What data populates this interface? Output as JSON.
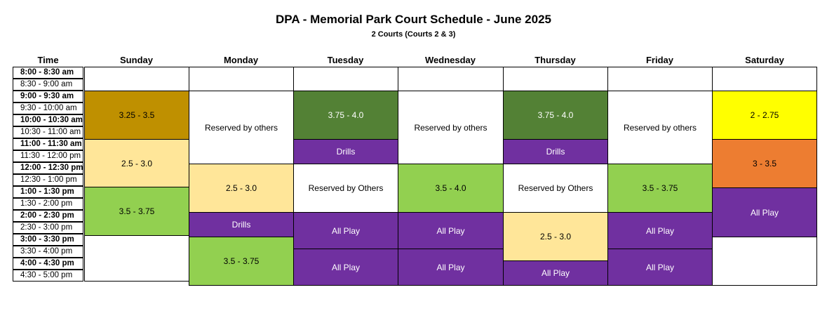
{
  "title": "DPA - Memorial Park Court Schedule - June 2025",
  "subtitle": "2 Courts (Courts 2 & 3)",
  "colors": {
    "gold": "#bf9000",
    "cream": "#ffe699",
    "lightgreen": "#92d050",
    "darkgreen": "#538135",
    "purple": "#7030a0",
    "yellow": "#ffff00",
    "orange": "#ed7d31",
    "white": "#ffffff"
  },
  "headers": {
    "time": "Time",
    "sunday": "Sunday",
    "monday": "Monday",
    "tuesday": "Tuesday",
    "wednesday": "Wednesday",
    "thursday": "Thursday",
    "friday": "Friday",
    "saturday": "Saturday"
  },
  "times": [
    "8:00 - 8:30 am",
    "8:30 - 9:00 am",
    "9:00 - 9:30 am",
    "9:30 - 10:00 am",
    "10:00 - 10:30 am",
    "10:30 - 11:00 am",
    "11:00 - 11:30 am",
    "11:30 - 12:00 pm",
    "12:00 - 12:30 pm",
    "12:30 - 1:00 pm",
    "1:00 - 1:30 pm",
    "1:30 - 2:00 pm",
    "2:00 - 2:30 pm",
    "2:30 - 3:00 pm",
    "3:00 - 3:30 pm",
    "3:30 - 4:00 pm",
    "4:00 - 4:30 pm",
    "4:30 - 5:00 pm"
  ],
  "schedule": {
    "sunday": [
      {
        "label": "",
        "color": "white"
      },
      {
        "label": "3.25 - 3.5",
        "color": "gold"
      },
      {
        "label": "2.5 - 3.0",
        "color": "cream"
      },
      {
        "label": "3.5 - 3.75",
        "color": "lightgreen"
      },
      {
        "label": "",
        "color": "white"
      }
    ],
    "monday": [
      {
        "label": "",
        "color": "white"
      },
      {
        "label": "Reserved by others",
        "color": "white"
      },
      {
        "label": "2.5 - 3.0",
        "color": "cream"
      },
      {
        "label": "Drills",
        "color": "purple"
      },
      {
        "label": "3.5 - 3.75",
        "color": "lightgreen"
      }
    ],
    "tuesday": [
      {
        "label": "",
        "color": "white"
      },
      {
        "label": "3.75 - 4.0",
        "color": "darkgreen"
      },
      {
        "label": "Drills",
        "color": "purple"
      },
      {
        "label": "Reserved by Others",
        "color": "white"
      },
      {
        "label": "All Play",
        "color": "purple"
      },
      {
        "label": "All Play",
        "color": "purple"
      }
    ],
    "wednesday": [
      {
        "label": "",
        "color": "white"
      },
      {
        "label": "Reserved by others",
        "color": "white"
      },
      {
        "label": "3.5 - 4.0",
        "color": "lightgreen"
      },
      {
        "label": "All Play",
        "color": "purple"
      },
      {
        "label": "All Play",
        "color": "purple"
      }
    ],
    "thursday": [
      {
        "label": "",
        "color": "white"
      },
      {
        "label": "3.75 - 4.0",
        "color": "darkgreen"
      },
      {
        "label": "Drills",
        "color": "purple"
      },
      {
        "label": "Reserved by Others",
        "color": "white"
      },
      {
        "label": "2.5 - 3.0",
        "color": "cream"
      },
      {
        "label": "All Play",
        "color": "purple"
      }
    ],
    "friday": [
      {
        "label": "",
        "color": "white"
      },
      {
        "label": "Reserved by others",
        "color": "white"
      },
      {
        "label": "3.5 - 3.75",
        "color": "lightgreen"
      },
      {
        "label": "All Play",
        "color": "purple"
      },
      {
        "label": "All Play",
        "color": "purple"
      }
    ],
    "saturday": [
      {
        "label": "",
        "color": "white"
      },
      {
        "label": "2 - 2.75",
        "color": "yellow"
      },
      {
        "label": "3 - 3.5",
        "color": "orange"
      },
      {
        "label": "All Play",
        "color": "purple"
      },
      {
        "label": "",
        "color": "white"
      }
    ]
  }
}
